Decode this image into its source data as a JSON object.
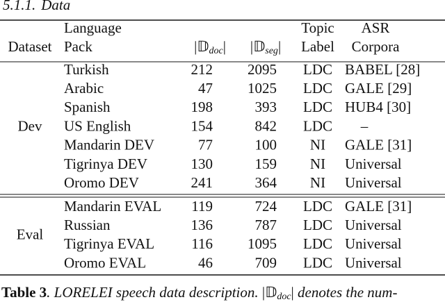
{
  "section": {
    "number": "5.1.1.",
    "title": "Data"
  },
  "table": {
    "header": {
      "dataset": "Dataset",
      "language_pack": [
        "Language",
        "Pack"
      ],
      "doc": {
        "open": "|",
        "symbol": "𝔻",
        "subscript": "doc",
        "close": "|"
      },
      "seg": {
        "open": "|",
        "symbol": "𝔻",
        "subscript": "seg",
        "close": "|"
      },
      "topic_label": [
        "Topic",
        "Label"
      ],
      "asr_corpora": [
        "ASR",
        "Corpora"
      ]
    },
    "groups": [
      {
        "name": "Dev",
        "rows": [
          [
            "Turkish",
            212,
            2095,
            "LDC",
            "BABEL [28]"
          ],
          [
            "Arabic",
            47,
            1025,
            "LDC",
            "GALE [29]"
          ],
          [
            "Spanish",
            198,
            393,
            "LDC",
            "HUB4 [30]"
          ],
          [
            "US English",
            154,
            842,
            "LDC",
            "–"
          ],
          [
            "Mandarin DEV",
            77,
            100,
            "NI",
            "GALE [31]"
          ],
          [
            "Tigrinya DEV",
            130,
            159,
            "NI",
            "Universal"
          ],
          [
            "Oromo DEV",
            241,
            364,
            "NI",
            "Universal"
          ]
        ]
      },
      {
        "name": "Eval",
        "rows": [
          [
            "Mandarin EVAL",
            119,
            724,
            "LDC",
            "GALE [31]"
          ],
          [
            "Russian",
            136,
            787,
            "LDC",
            "Universal"
          ],
          [
            "Tigrinya EVAL",
            116,
            1095,
            "LDC",
            "Universal"
          ],
          [
            "Oromo EVAL",
            46,
            709,
            "LDC",
            "Universal"
          ]
        ]
      }
    ]
  },
  "caption": {
    "label": "Table 3",
    "text": ". LORELEI speech data description. ",
    "math": {
      "open": "|",
      "symbol": "𝔻",
      "subscript": "doc",
      "close": "|"
    },
    "rest": " denotes the num-"
  }
}
